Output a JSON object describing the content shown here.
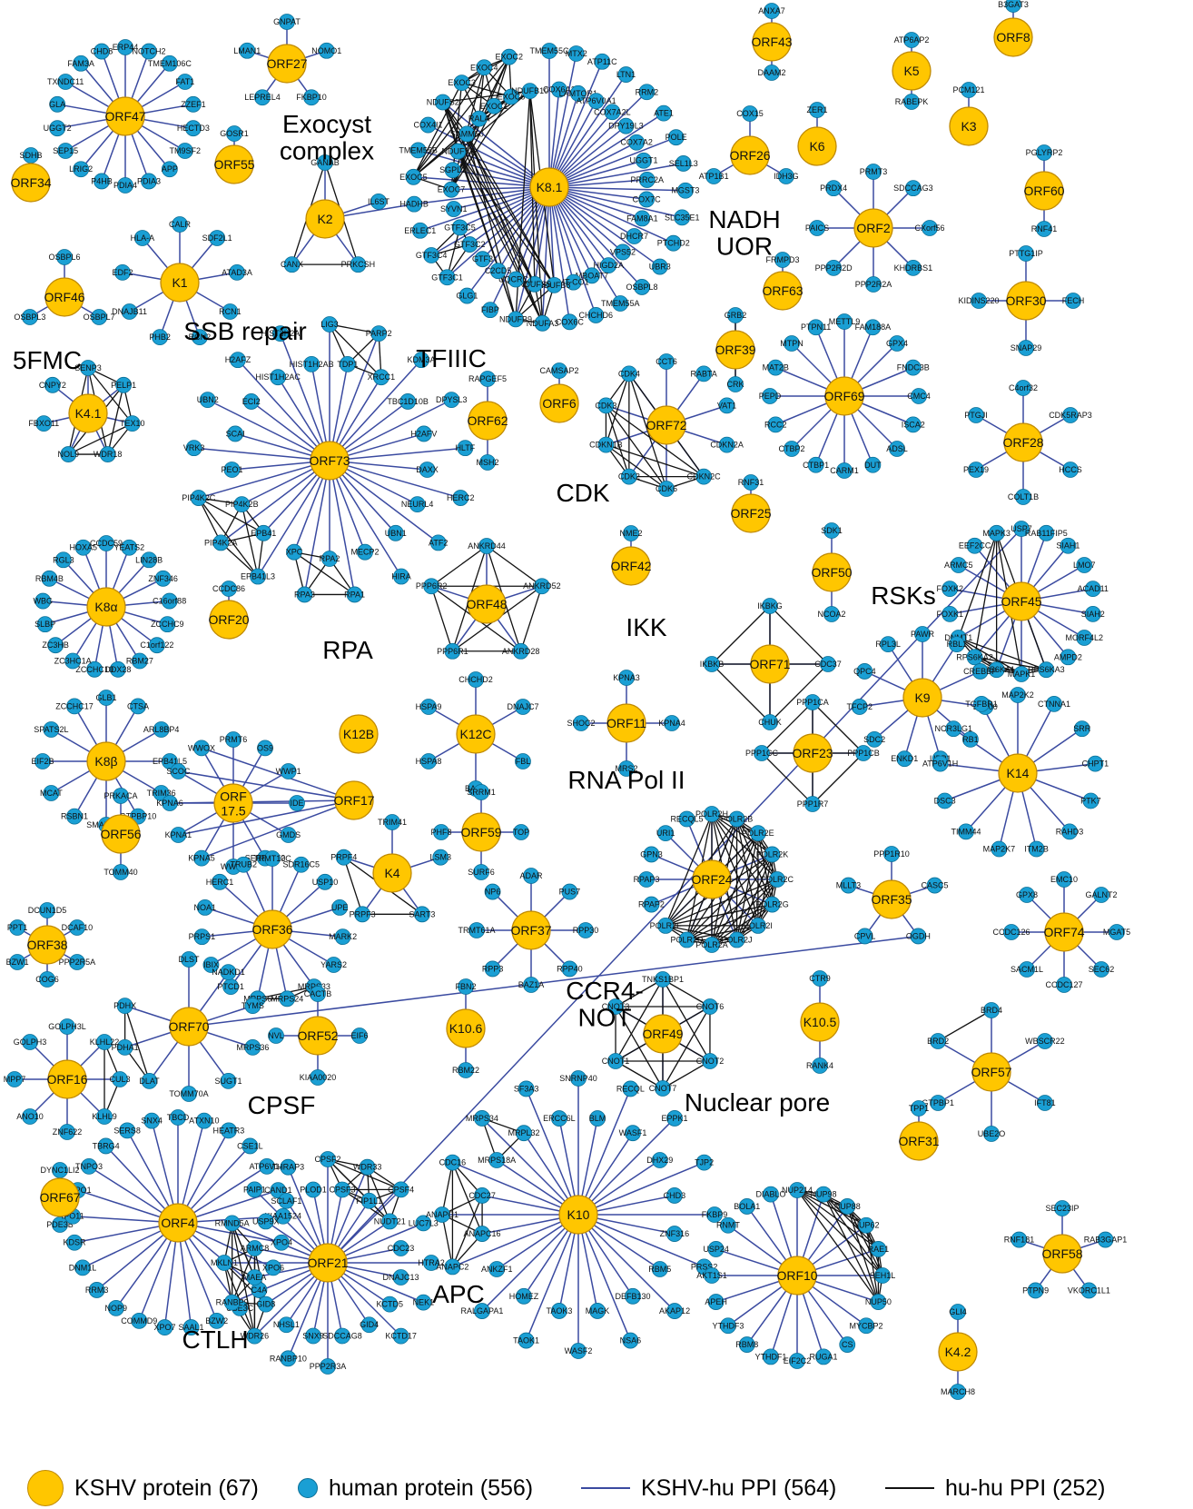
{
  "colors": {
    "kshv_node": "#ffc600",
    "human_node": "#1a9fd4",
    "kshv_hu_edge": "#3a4aa0",
    "hu_hu_edge": "#111111"
  },
  "legend": {
    "kshv": "KSHV protein (67)",
    "human": "human protein (556)",
    "kshv_hu": "KSHV-hu PPI (564)",
    "hu_hu": "hu-hu PPI (252)"
  },
  "cluster_labels": [
    "Exocyst complex",
    "NADH UOR",
    "SSB repair",
    "5FMC",
    "TFIIIC",
    "CDK",
    "RSKs",
    "IKK",
    "RPA",
    "RNA Pol II",
    "CCR4-NOT",
    "CPSF",
    "Nuclear pore",
    "APC",
    "CTLH"
  ],
  "modules": [
    {
      "hub": "ORF47",
      "partners": [
        "ERP44",
        "NOTCH2",
        "TMEM106C",
        "FAT1",
        "ZZEF1",
        "HECTD3",
        "TM9SF2",
        "APP",
        "PDIA3",
        "PDIA4",
        "P4HB",
        "LRIG2",
        "SEP15",
        "UGGT2",
        "GLA",
        "TXNDC11",
        "FAM3A",
        "CHD8"
      ]
    },
    {
      "hub": "ORF27",
      "partners": [
        "GNPAT",
        "NOMO1",
        "FKBP10",
        "LEPREL4",
        "LMAN1"
      ]
    },
    {
      "hub": "K8.1",
      "partners": [
        "TMEM55C",
        "COX6A1",
        "MTX2",
        "LAMTOR1",
        "ATP11C",
        "ATP6V0A1",
        "LTN1",
        "COX7A2L",
        "RRM2",
        "DPY19L3",
        "ATE1",
        "COX7A2",
        "POLE",
        "UGGT1",
        "SEL1L3",
        "PRRC2A",
        "MGST3",
        "COX7C",
        "SLC35E1",
        "FAM8A1",
        "PTCHD2",
        "DHCR7",
        "UBR3",
        "VPS52",
        "OSBPL8",
        "HIGD2A",
        "TMEM55A",
        "MBOAT7",
        "CHCHD6",
        "MT-CO1",
        "COX6C",
        "NDUFB8",
        "NDUFA3",
        "NDUFS5",
        "NDUFB9",
        "UQCRC1",
        "FIBP",
        "C2CD5",
        "GLG1",
        "GTF3",
        "GTF3C1",
        "GTF3C2",
        "GTF3C4",
        "GTF3C5",
        "ERLEC1",
        "SYVN1",
        "HADHB",
        "EXOC7",
        "EXOC5",
        "SGPL1",
        "TMEM55B",
        "NDUFV1",
        "COX4I1",
        "SAMM50",
        "NDUFS2"
      ]
    },
    {
      "hub": "ORF43",
      "partners": [
        "ANXA7",
        "DAAM2"
      ]
    },
    {
      "hub": "K5",
      "partners": [
        "ATP6AP2",
        "RABEPK"
      ]
    },
    {
      "hub": "K3",
      "partners": [
        "PCM121"
      ]
    },
    {
      "hub": "ORF8",
      "partners": [
        "B3GAT3"
      ]
    },
    {
      "hub": "ORF55",
      "partners": [
        "GOSR1"
      ]
    },
    {
      "hub": "ORF34",
      "partners": [
        "SDHB"
      ]
    },
    {
      "hub": "ORF26",
      "partners": [
        "COX15",
        "IDH3G",
        "ATP1B1"
      ]
    },
    {
      "hub": "K6",
      "partners": [
        "ZER1"
      ]
    },
    {
      "hub": "ORF60",
      "partners": [
        "PGLYRP2",
        "RNF41"
      ]
    },
    {
      "hub": "K2",
      "partners": [
        "GANAB",
        "IL6ST",
        "PRKCSH",
        "CANX",
        "HADHB"
      ]
    },
    {
      "hub": "ORF2",
      "partners": [
        "PRMT3",
        "SDCCAG3",
        "CXorf56",
        "KHDRBS1",
        "PPP2R2A",
        "PPP2R2D",
        "PAICS",
        "PRDX4"
      ]
    },
    {
      "hub": "K1",
      "partners": [
        "CALR",
        "SDF2L1",
        "ATAD3A",
        "RCN1",
        "RCN2",
        "PHB2",
        "DNAJB11",
        "EDF2",
        "HLA-A"
      ]
    },
    {
      "hub": "ORF46",
      "partners": [
        "OSBPL6",
        "OSBPL7",
        "OSBPL3"
      ]
    },
    {
      "hub": "ORF30",
      "partners": [
        "PTTG1IP",
        "FECH",
        "SNAP29",
        "KIDINS220"
      ]
    },
    {
      "hub": "ORF63",
      "partners": [
        "FRMPD3"
      ]
    },
    {
      "hub": "ORF39",
      "partners": [
        "GRB2",
        "CRK"
      ]
    },
    {
      "hub": "K4.1",
      "partners": [
        "SENP3",
        "PELP1",
        "TEX10",
        "WDR18",
        "NOL9",
        "FBXO11",
        "CNPY2"
      ]
    },
    {
      "hub": "ORF73",
      "partners": [
        "LIG3",
        "TDP1",
        "PARP2",
        "XRCC1",
        "KDM3A",
        "TBC1D10B",
        "DPYSL3",
        "H2AFV",
        "HLTF",
        "DAXX",
        "HERC2",
        "NEURL4",
        "ATF2",
        "UBN1",
        "HIRA",
        "MECP2",
        "RPA1",
        "RPA2",
        "RPA3",
        "XPC",
        "EPB41L3",
        "EPB41",
        "PIP4K2A",
        "PIP4K2B",
        "PIP4K2C",
        "PEO1",
        "VRK3",
        "SCAI",
        "UBN2",
        "ECI2",
        "H2AFZ",
        "HIST1H2AC",
        "HIST3H2A",
        "HIST1H2AB"
      ]
    },
    {
      "hub": "ORF6",
      "partners": [
        "CAMSAP2"
      ]
    },
    {
      "hub": "ORF62",
      "partners": [
        "RAPGEF5",
        "MSH2"
      ]
    },
    {
      "hub": "ORF72",
      "partners": [
        "CCT6",
        "RABTA",
        "VAT1",
        "CDKN2A",
        "CDKN2C",
        "CDK6",
        "CDK2",
        "CDKN1B",
        "CDK3",
        "CDK4"
      ]
    },
    {
      "hub": "ORF69",
      "partners": [
        "METTL9",
        "FAM188A",
        "GPX4",
        "FNDC3B",
        "CMC4",
        "ISCA2",
        "ADSL",
        "DUT",
        "CARM1",
        "CTBP1",
        "CTBP2",
        "RCC2",
        "PEPD",
        "MAT2B",
        "MTPN",
        "PTPN11"
      ]
    },
    {
      "hub": "ORF28",
      "partners": [
        "C4orf32",
        "CDK5RAP3",
        "HCCS",
        "COLT1B",
        "PEX19",
        "PTGJI"
      ]
    },
    {
      "hub": "K8α",
      "partners": [
        "CCDC59",
        "YEATS2",
        "LIN28B",
        "ZNF346",
        "C16orf88",
        "ZCCHC9",
        "C1orf122",
        "RBM27",
        "DDX28",
        "ZCCHC10",
        "ZC3HC1A",
        "ZC3HB",
        "SLBP",
        "WBG",
        "RBM4B",
        "RGL3",
        "HOXA5"
      ]
    },
    {
      "hub": "ORF25",
      "partners": [
        "RNF31"
      ]
    },
    {
      "hub": "ORF42",
      "partners": [
        "NME2"
      ]
    },
    {
      "hub": "ORF48",
      "partners": [
        "ANKRD44",
        "ANKRD52",
        "ANKRD28",
        "PPP6R1",
        "PPP6R2"
      ]
    },
    {
      "hub": "ORF50",
      "partners": [
        "SDK1",
        "NCOA2"
      ]
    },
    {
      "hub": "ORF45",
      "partners": [
        "USP7",
        "RAB11FIP5",
        "SIAH1",
        "LMO7",
        "ACAD11",
        "SIAH2",
        "MORF4L2",
        "AMPD2",
        "RPS6KA3",
        "MAPK1",
        "RPS6KA1",
        "RPS6KA2",
        "DNMT1",
        "FOXK1",
        "FOXK2",
        "ARMC5",
        "EEF2CC"
      ]
    },
    {
      "hub": "ORF20",
      "partners": [
        "CCDC86"
      ]
    },
    {
      "hub": "K8β",
      "partners": [
        "GLB1",
        "CTSA",
        "ARL8BP4",
        "EPB41L5",
        "TRIM36",
        "GTPBP10",
        "SMARCA1",
        "RSBN1",
        "MCAT",
        "EIF2B",
        "SPATS2L",
        "ZCCHC17"
      ]
    },
    {
      "hub": "K12C",
      "partners": [
        "CHCHD2",
        "DNAJC7",
        "FBL",
        "BAG2",
        "HSPA8",
        "HSPA9"
      ]
    },
    {
      "hub": "K12B",
      "partners": []
    },
    {
      "hub": "ORF11",
      "partners": [
        "KPNA3",
        "KPNA4",
        "MRS2",
        "SHOC2"
      ]
    },
    {
      "hub": "ORF71",
      "partners": [
        "IKBKG",
        "CDC37",
        "CHUK",
        "IKBKB"
      ]
    },
    {
      "hub": "K9",
      "partners": [
        "PAWR",
        "RBL1",
        "CREBBP",
        "EP300",
        "RB1",
        "UBP1",
        "ENKD1",
        "SDC2",
        "TFCP2",
        "QPC4",
        "RPL3L"
      ]
    },
    {
      "hub": "ORF17.5",
      "partners": [
        "PRMT6",
        "OS9",
        "WWP1",
        "IDE",
        "GMDS",
        "SERPINE2",
        "WWP2",
        "KPNA5",
        "KPNA1",
        "KPNA6",
        "SCOC",
        "WWOX"
      ]
    },
    {
      "hub": "ORF17",
      "partners": [
        "KPNA5",
        "KPNA1",
        "KPNA6",
        "SCOC",
        "WWOX"
      ]
    },
    {
      "hub": "ORF23",
      "partners": [
        "PPP1CA",
        "PPP1CB",
        "PPP1R7",
        "PPP1CC"
      ]
    },
    {
      "hub": "K14",
      "partners": [
        "MAP2K2",
        "CTNNA1",
        "SRR",
        "CHPT1",
        "PTK7",
        "RAHD3",
        "ITM2B",
        "MAP2K7",
        "TIMM44",
        "DSC3",
        "ATP6V1H",
        "NCR3LG1",
        "TGFBR1"
      ]
    },
    {
      "hub": "ORF56",
      "partners": [
        "PRKACA",
        "TOMM40"
      ]
    },
    {
      "hub": "ORF59",
      "partners": [
        "SRRM1",
        "TOP",
        "SURF6",
        "PHF8"
      ]
    },
    {
      "hub": "K4",
      "partners": [
        "TRIM41",
        "LSM3",
        "SART3",
        "PRPF3",
        "PRPF4"
      ]
    },
    {
      "hub": "ORF24",
      "partners": [
        "POLR2H",
        "POLR2B",
        "POLR2E",
        "POLR2K",
        "POLR2C",
        "POLR2G",
        "POLR2I",
        "POLR2J",
        "POLR2A",
        "POLR2D",
        "POLR2F",
        "RPAP2",
        "RPAP3",
        "GPN3",
        "URI1",
        "RECQL5"
      ]
    },
    {
      "hub": "ORF38",
      "partners": [
        "DCUN1D5",
        "DCAF10",
        "PPP2R5A",
        "COG6",
        "BZW1",
        "PPT1"
      ]
    },
    {
      "hub": "ORF36",
      "partners": [
        "TRMT10C",
        "SDR16C5",
        "USP10",
        "UPE",
        "MARK2",
        "YARS2",
        "MRPS33",
        "MRPS24",
        "MRPS6",
        "PTCD1",
        "IBIX",
        "PRPS1",
        "NOA1",
        "HERC1",
        "TRUB2"
      ]
    },
    {
      "hub": "ORF37",
      "partners": [
        "ADAR",
        "PUS7",
        "RPP30",
        "RPP40",
        "BAZ1A",
        "RPP3",
        "TRMT61A",
        "NP6"
      ]
    },
    {
      "hub": "ORF35",
      "partners": [
        "PPP1R10",
        "CASC5",
        "OGDH",
        "CPVL",
        "MLLT3"
      ]
    },
    {
      "hub": "ORF74",
      "partners": [
        "EMC10",
        "GALNT2",
        "MGAT5",
        "SEC62",
        "CCDC127",
        "SACM1L",
        "CCDC126",
        "GPX8"
      ]
    },
    {
      "hub": "ORF70",
      "partners": [
        "DLST",
        "NADKD1",
        "TYMS",
        "MRPS36",
        "SUGT1",
        "TOMM70A",
        "DLAT",
        "PDHA1",
        "PDHX",
        "OGDH"
      ]
    },
    {
      "hub": "ORF52",
      "partners": [
        "CACTB",
        "EIF6",
        "KIAA0020",
        "NVL"
      ]
    },
    {
      "hub": "K10.6",
      "partners": [
        "FBN2",
        "RBM22"
      ]
    },
    {
      "hub": "ORF49",
      "partners": [
        "TNKS1BP1",
        "CNOT6",
        "CNOT2",
        "CNOT7",
        "CNOT1",
        "CNOT3"
      ]
    },
    {
      "hub": "K10.5",
      "partners": [
        "CTR9",
        "RANK4"
      ]
    },
    {
      "hub": "ORF16",
      "partners": [
        "GOLPH3L",
        "KLHL22",
        "CUL3",
        "KLHL9",
        "ZNF622",
        "ANO10",
        "MPP7",
        "GOLPH3"
      ]
    },
    {
      "hub": "ORF57",
      "partners": [
        "BRD4",
        "WBSCR22",
        "IFT81",
        "UBE2O",
        "GTPBP1",
        "BRD2"
      ]
    },
    {
      "hub": "ORF67",
      "partners": [
        "DYNC1LI2",
        "PDE3B"
      ]
    },
    {
      "hub": "ORF4",
      "partners": [
        "TBCD",
        "ATXN10",
        "HEATR3",
        "CSE1L",
        "ATP6V1A",
        "CAND1",
        "KIAA1524",
        "XPO4",
        "XPO6",
        "C4A",
        "UBE3C",
        "BZW2",
        "SAAL1",
        "XPO7",
        "COMMD9",
        "NOP9",
        "RRM3",
        "DNM1L",
        "KDSR",
        "IPO11",
        "TNPO1",
        "TNPO3",
        "TBRG4",
        "SERS8",
        "SNX4"
      ]
    },
    {
      "hub": "ORF21",
      "partners": [
        "CPSF2",
        "CPSF3",
        "WDR33",
        "FIP1L1",
        "CPSF4",
        "NUDT21",
        "LUC7L3",
        "CDC23",
        "HTRA2",
        "DNAJC13",
        "NEK1",
        "KCTD5",
        "KCTD17",
        "GID4",
        "USP7",
        "SDCCAG8",
        "PPP2R3A",
        "SNX9",
        "RANBP10",
        "NHSL1",
        "WDR26",
        "GID8",
        "RANBP9",
        "MAEA",
        "MKLN1",
        "ARMC8",
        "RMND5A",
        "USP9X",
        "PAIP1",
        "SCLAF1",
        "THRAP3",
        "PLOD1"
      ]
    },
    {
      "hub": "K10",
      "partners": [
        "SNRNP40",
        "BLM",
        "RECQL",
        "WASF1",
        "EPPK1",
        "DHX29",
        "TJP2",
        "CHD3",
        "FKBP9",
        "ZNF316",
        "PRSS2",
        "RBM5",
        "AKAP12",
        "DEFB130",
        "NSA6",
        "MAGK",
        "WASF2",
        "TAOK3",
        "TAOK1",
        "HOMEZ",
        "RALGAPA1",
        "ANKZF1",
        "ANAPC2",
        "ANAPC16",
        "ANAPC1",
        "CDC27",
        "CDC16",
        "MRPS18A",
        "MRPS34",
        "MRPL32",
        "SF3A3",
        "ERCC6L"
      ]
    },
    {
      "hub": "ORF31",
      "partners": [
        "TPP1"
      ]
    },
    {
      "hub": "ORF10",
      "partners": [
        "NUP214",
        "NUP98",
        "NUP88",
        "NUP62",
        "RAE1",
        "SEH1L",
        "NUP50",
        "MYCBP2",
        "CS",
        "RUGA1",
        "EIF2C2",
        "YTHDF1",
        "RBM8",
        "YTHDF3",
        "APEH",
        "AKT1S1",
        "USP24",
        "RNMT",
        "BOLA1",
        "DIABLO"
      ]
    },
    {
      "hub": "K4.2",
      "partners": [
        "GLI4",
        "MARCH8"
      ]
    },
    {
      "hub": "ORF58",
      "partners": [
        "SEC23IP",
        "RAB3GAP1",
        "VKORC1L1",
        "PTPN9",
        "RNF181"
      ]
    }
  ]
}
